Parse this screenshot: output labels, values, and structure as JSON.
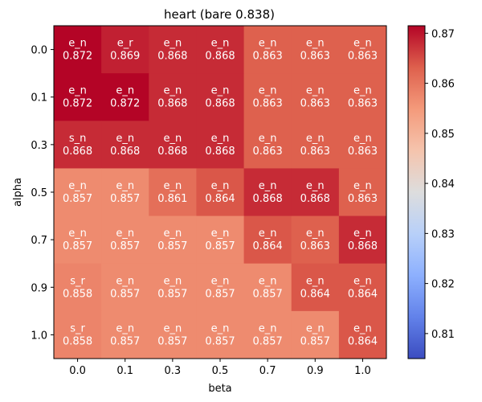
{
  "chart_data": {
    "type": "heatmap",
    "title": "heart (bare 0.838)",
    "xlabel": "beta",
    "ylabel": "alpha",
    "x_categories": [
      "0.0",
      "0.1",
      "0.3",
      "0.5",
      "0.7",
      "0.9",
      "1.0"
    ],
    "y_categories": [
      "0.0",
      "0.1",
      "0.3",
      "0.5",
      "0.7",
      "0.9",
      "1.0"
    ],
    "values": [
      [
        0.872,
        0.869,
        0.868,
        0.868,
        0.863,
        0.863,
        0.863
      ],
      [
        0.872,
        0.872,
        0.868,
        0.868,
        0.863,
        0.863,
        0.863
      ],
      [
        0.868,
        0.868,
        0.868,
        0.868,
        0.863,
        0.863,
        0.863
      ],
      [
        0.857,
        0.857,
        0.861,
        0.864,
        0.868,
        0.868,
        0.863
      ],
      [
        0.857,
        0.857,
        0.857,
        0.857,
        0.864,
        0.863,
        0.868
      ],
      [
        0.858,
        0.857,
        0.857,
        0.857,
        0.857,
        0.864,
        0.864
      ],
      [
        0.858,
        0.857,
        0.857,
        0.857,
        0.857,
        0.857,
        0.864
      ]
    ],
    "cell_labels": [
      [
        "e_n",
        "e_r",
        "e_n",
        "e_n",
        "e_n",
        "e_n",
        "e_n"
      ],
      [
        "e_n",
        "e_n",
        "e_n",
        "e_n",
        "e_n",
        "e_n",
        "e_n"
      ],
      [
        "s_n",
        "e_n",
        "e_n",
        "e_n",
        "e_n",
        "e_n",
        "e_n"
      ],
      [
        "e_n",
        "e_n",
        "e_n",
        "e_n",
        "e_n",
        "e_n",
        "e_n"
      ],
      [
        "e_n",
        "e_n",
        "e_n",
        "e_n",
        "e_n",
        "e_n",
        "e_n"
      ],
      [
        "s_r",
        "e_n",
        "e_n",
        "e_n",
        "e_n",
        "e_n",
        "e_n"
      ],
      [
        "s_r",
        "e_n",
        "e_n",
        "e_n",
        "e_n",
        "e_n",
        "e_n"
      ]
    ],
    "colormap": "coolwarm",
    "vmin": 0.805,
    "vmax": 0.8715,
    "colorbar_ticks": [
      "0.81",
      "0.82",
      "0.83",
      "0.84",
      "0.85",
      "0.86",
      "0.87"
    ],
    "grid": false
  }
}
